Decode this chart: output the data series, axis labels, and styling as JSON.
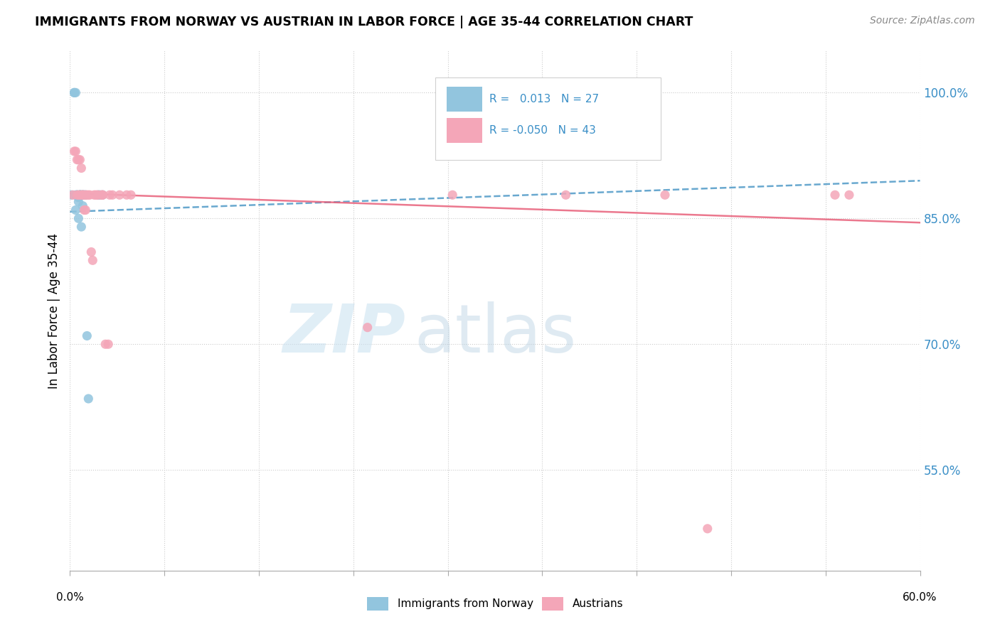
{
  "title": "IMMIGRANTS FROM NORWAY VS AUSTRIAN IN LABOR FORCE | AGE 35-44 CORRELATION CHART",
  "source": "Source: ZipAtlas.com",
  "ylabel": "In Labor Force | Age 35-44",
  "norway_R": "0.013",
  "norway_N": "27",
  "austria_R": "-0.050",
  "austria_N": "43",
  "norway_color": "#92c5de",
  "austria_color": "#f4a6b8",
  "norway_line_color": "#4393c3",
  "austria_line_color": "#e8607a",
  "right_axis_color": "#3a8fc7",
  "xmin": 0.0,
  "xmax": 0.6,
  "ymin": 0.43,
  "ymax": 1.05,
  "ytick_vals": [
    0.55,
    0.7,
    0.85,
    1.0
  ],
  "ytick_labels": [
    "55.0%",
    "70.0%",
    "85.0%",
    "100.0%"
  ],
  "norway_x": [
    0.001,
    0.003,
    0.003,
    0.004,
    0.004,
    0.004,
    0.005,
    0.005,
    0.006,
    0.006,
    0.006,
    0.007,
    0.007,
    0.007,
    0.007,
    0.008,
    0.008,
    0.009,
    0.009,
    0.009,
    0.01,
    0.011,
    0.012,
    0.013,
    0.02,
    0.021,
    0.023
  ],
  "norway_y": [
    0.878,
    1.0,
    1.0,
    1.0,
    0.86,
    0.878,
    0.878,
    0.878,
    0.87,
    0.875,
    0.85,
    0.878,
    0.878,
    0.878,
    0.878,
    0.878,
    0.84,
    0.878,
    0.878,
    0.865,
    0.878,
    0.878,
    0.71,
    0.635,
    0.878,
    0.878,
    0.878
  ],
  "austria_x": [
    0.002,
    0.003,
    0.004,
    0.005,
    0.005,
    0.006,
    0.006,
    0.007,
    0.007,
    0.008,
    0.008,
    0.009,
    0.009,
    0.01,
    0.01,
    0.011,
    0.011,
    0.012,
    0.013,
    0.014,
    0.015,
    0.016,
    0.017,
    0.018,
    0.019,
    0.02,
    0.022,
    0.023,
    0.023,
    0.025,
    0.027,
    0.028,
    0.03,
    0.035,
    0.04,
    0.043,
    0.21,
    0.27,
    0.35,
    0.42,
    0.45,
    0.54,
    0.55
  ],
  "austria_y": [
    0.878,
    0.93,
    0.93,
    0.92,
    0.878,
    0.92,
    0.878,
    0.92,
    0.878,
    0.91,
    0.878,
    0.878,
    0.878,
    0.878,
    0.86,
    0.878,
    0.86,
    0.878,
    0.878,
    0.878,
    0.81,
    0.8,
    0.878,
    0.878,
    0.878,
    0.878,
    0.878,
    0.878,
    0.878,
    0.7,
    0.7,
    0.878,
    0.878,
    0.878,
    0.878,
    0.878,
    0.72,
    0.878,
    0.878,
    0.878,
    0.48,
    0.878,
    0.878
  ],
  "norway_trend_x": [
    0.0,
    0.6
  ],
  "norway_trend_y": [
    0.858,
    0.895
  ],
  "austria_trend_x": [
    0.0,
    0.6
  ],
  "austria_trend_y": [
    0.88,
    0.845
  ]
}
